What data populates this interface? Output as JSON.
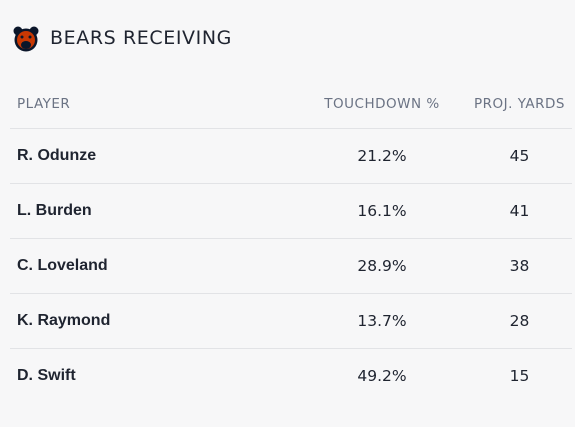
{
  "header": {
    "title": "BEARS RECEIVING"
  },
  "table": {
    "columns": [
      "PLAYER",
      "TOUCHDOWN %",
      "PROJ. YARDS"
    ],
    "rows": [
      [
        "R. Odunze",
        "21.2%",
        "45"
      ],
      [
        "L. Burden",
        "16.1%",
        "41"
      ],
      [
        "C. Loveland",
        "28.9%",
        "38"
      ],
      [
        "K. Raymond",
        "13.7%",
        "28"
      ],
      [
        "D. Swift",
        "49.2%",
        "15"
      ]
    ]
  }
}
